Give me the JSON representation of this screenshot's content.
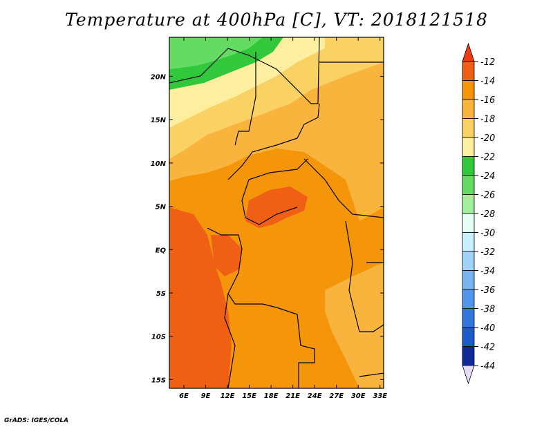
{
  "title": "Temperature at 400hPa [C], VT: 2018121518",
  "credit": "GrADS: IGES/COLA",
  "map": {
    "lon_labels": [
      "6E",
      "9E",
      "12E",
      "15E",
      "18E",
      "21E",
      "24E",
      "27E",
      "30E",
      "33E"
    ],
    "lat_labels": [
      "20N",
      "15N",
      "10N",
      "5N",
      "EQ",
      "5S",
      "10S",
      "15S"
    ],
    "lon_range": [
      4,
      33.5
    ],
    "lat_range": [
      -16,
      24.5
    ]
  },
  "colorbar": {
    "labels": [
      "-12",
      "-14",
      "-16",
      "-18",
      "-20",
      "-22",
      "-24",
      "-26",
      "-28",
      "-30",
      "-32",
      "-34",
      "-36",
      "-38",
      "-40",
      "-42",
      "-44"
    ],
    "colors": [
      "#f06014",
      "#f5960a",
      "#f8b43c",
      "#fad264",
      "#fdeea0",
      "#32c83c",
      "#64dc64",
      "#a0f09c",
      "#e6fff8",
      "#c8f0ff",
      "#a0d2fa",
      "#78b4f0",
      "#5096ec",
      "#3278dc",
      "#1e5ac8",
      "#0f2896"
    ],
    "top_arrow_color": "#f03c14",
    "bottom_arrow_color": "#e6dcf8"
  }
}
